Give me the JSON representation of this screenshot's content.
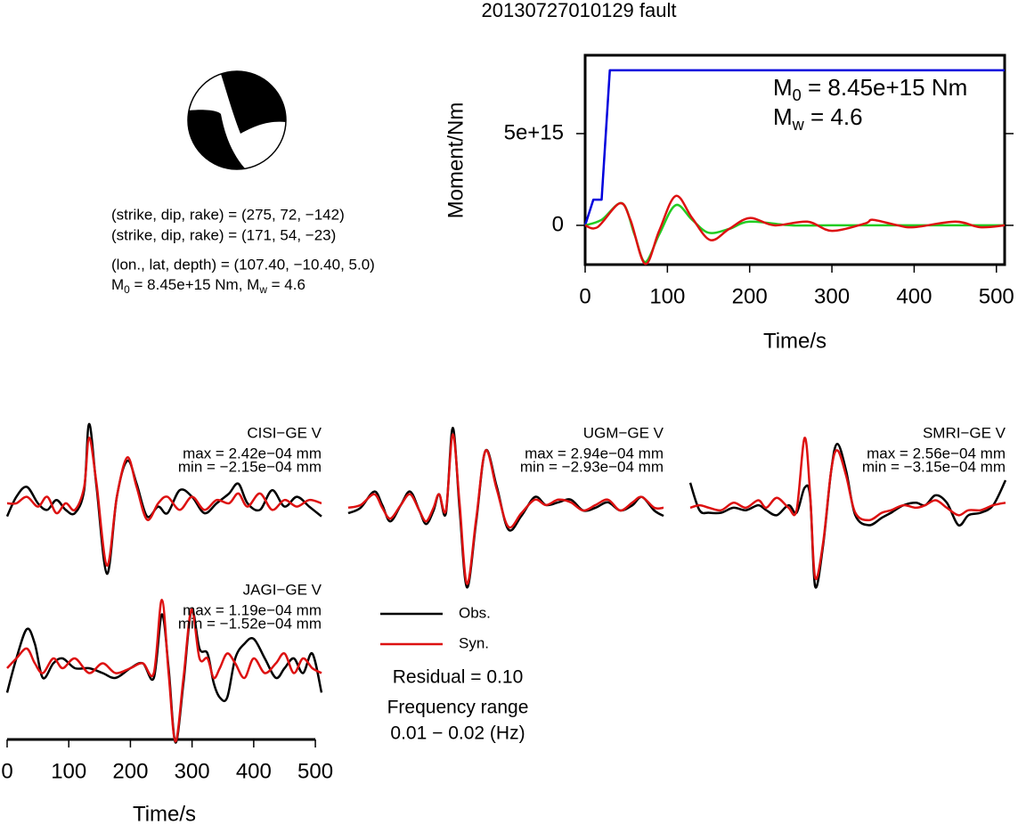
{
  "title": "20130727010129 fault",
  "mechanism": {
    "lines": [
      "(strike, dip, rake) = (275, 72, −142)",
      "(strike, dip, rake) = (171, 54, −23)",
      "(lon., lat, depth) = (107.40, −10.40, 5.0)"
    ],
    "moment": [
      "M",
      "0",
      " = 8.45e+15 Nm, M",
      "w",
      " = 4.6"
    ]
  },
  "notes": {
    "residual": "Residual = 0.10",
    "frequency": [
      "Frequency range",
      "0.01 − 0.02 (Hz)"
    ]
  },
  "chart_data": [
    {
      "type": "line",
      "x_label": "Time/s",
      "y_label": "Moment/Nm",
      "annotations": [
        [
          "M",
          "0",
          " = 8.45e+15 Nm"
        ],
        [
          "M",
          "w",
          " = 4.6"
        ]
      ],
      "xlim": [
        0,
        510
      ],
      "ylim": [
        -2140000000000000.0,
        9270000000000000.0
      ],
      "xticks": [
        0,
        100,
        200,
        300,
        400,
        500
      ],
      "yticks": [
        0,
        {
          "value": 5000000000000000.0,
          "label": "5e+15"
        }
      ],
      "series": [
        {
          "color": "#0000dd",
          "x": [
            0,
            10,
            20,
            30,
            510
          ],
          "values": [
            0,
            1400000000000000.0,
            1400000000000000.0,
            8450000000000000.0,
            8450000000000000.0
          ]
        },
        {
          "color": "#22cc22",
          "x": [
            0,
            20,
            45,
            60,
            73,
            90,
            110,
            130,
            150,
            175,
            200,
            250,
            300,
            400,
            510
          ],
          "values": [
            0,
            300000000000000.0,
            1200000000000000.0,
            -500000000000000.0,
            -2000000000000000.0,
            -500000000000000.0,
            1100000000000000.0,
            300000000000000.0,
            -400000000000000.0,
            -200000000000000.0,
            200000000000000.0,
            0,
            0,
            0,
            0
          ]
        },
        {
          "color": "#dd1111",
          "x": [
            0,
            15,
            42,
            55,
            73,
            90,
            110,
            130,
            152,
            175,
            200,
            230,
            270,
            300,
            340,
            350,
            380,
            400,
            450,
            480,
            510
          ],
          "values": [
            0,
            -100000000000000.0,
            1200000000000000.0,
            300000000000000.0,
            -2100000000000000.0,
            -300000000000000.0,
            1600000000000000.0,
            400000000000000.0,
            -800000000000000.0,
            -200000000000000.0,
            400000000000000.0,
            0,
            200000000000000.0,
            -300000000000000.0,
            100000000000000.0,
            300000000000000.0,
            0,
            -100000000000000.0,
            200000000000000.0,
            -100000000000000.0,
            0
          ]
        }
      ]
    },
    {
      "type": "line",
      "title": "CISI−GE V",
      "annotations": [
        "max = 2.42e−04 mm",
        "min = −2.15e−04 mm"
      ],
      "xlim": [
        0,
        510
      ],
      "ylim": [
        -0.000264,
        0.000269
      ],
      "x": [
        0,
        15,
        32,
        50,
        65,
        80,
        95,
        110,
        125,
        133,
        145,
        162,
        178,
        195,
        210,
        227,
        245,
        260,
        280,
        300,
        320,
        340,
        360,
        375,
        390,
        410,
        430,
        450,
        470,
        490,
        510
      ],
      "series": [
        {
          "name": "Obs.",
          "color": "#000000",
          "values": [
            -4e-05,
            2e-05,
            5e-05,
            0,
            -2e-05,
            1e-05,
            -2e-05,
            -3e-05,
            4e-05,
            0.000242,
            5e-05,
            -0.000215,
            2e-05,
            0.00013,
            6e-05,
            -4e-05,
            -1e-05,
            -3e-05,
            4e-05,
            2e-05,
            -3e-05,
            0,
            3e-05,
            6e-05,
            0,
            -2e-05,
            4e-05,
            -1e-05,
            2e-05,
            -1e-05,
            -4e-05
          ]
        },
        {
          "name": "Syn.",
          "color": "#dd1111",
          "values": [
            0,
            0,
            2e-05,
            -1e-05,
            2e-05,
            -3e-05,
            0,
            -2e-05,
            5e-05,
            0.0002,
            6e-05,
            -0.00019,
            2e-05,
            0.00014,
            5e-05,
            -5e-05,
            0,
            2e-05,
            -2e-05,
            2e-05,
            -2e-05,
            1e-05,
            0,
            3e-05,
            -1e-05,
            3e-05,
            -2e-05,
            1e-05,
            -1e-05,
            1e-05,
            0
          ]
        }
      ]
    },
    {
      "type": "line",
      "title": "UGM−GE V",
      "annotations": [
        "max = 2.94e−04 mm",
        "min = −2.93e−04 mm"
      ],
      "xlim": [
        0,
        510
      ],
      "ylim": [
        -0.000302,
        0.000341
      ],
      "x": [
        0,
        20,
        42,
        55,
        68,
        85,
        100,
        115,
        126,
        138,
        147,
        158,
        169,
        180,
        192,
        207,
        222,
        240,
        259,
        280,
        302,
        320,
        340,
        360,
        380,
        400,
        420,
        440,
        460,
        475,
        495,
        510
      ],
      "series": [
        {
          "color": "#000000",
          "values": [
            -2e-05,
            0,
            6e-05,
            1e-05,
            -5e-05,
            1e-05,
            6e-05,
            -1e-05,
            -6e-05,
            -1e-05,
            5e-05,
            -2e-05,
            0.000294,
            0,
            -0.000293,
            -5e-05,
            0.00021,
            8e-05,
            -8e-05,
            -3e-05,
            4e-05,
            1e-05,
            2e-05,
            3e-05,
            -1e-05,
            0,
            2e-05,
            -1e-05,
            1e-05,
            4e-05,
            -1e-05,
            -3e-05
          ]
        },
        {
          "color": "#dd1111",
          "values": [
            0,
            1e-05,
            5e-05,
            0,
            -4e-05,
            1e-05,
            5e-05,
            -1e-05,
            -5e-05,
            0,
            5e-05,
            -1e-05,
            0.00027,
            2e-05,
            -0.00028,
            -4e-05,
            0.00021,
            7e-05,
            -7e-05,
            -2e-05,
            3e-05,
            1e-05,
            3e-05,
            2e-05,
            -1e-05,
            1e-05,
            3e-05,
            -1e-05,
            2e-05,
            4e-05,
            0,
            0
          ]
        }
      ]
    },
    {
      "type": "line",
      "title": "SMRI−GE V",
      "annotations": [
        "max = 2.56e−04 mm",
        "min = −3.15e−04 mm"
      ],
      "xlim": [
        0,
        510
      ],
      "ylim": [
        -0.000329,
        0.000371
      ],
      "x": [
        0,
        15,
        30,
        50,
        70,
        90,
        110,
        123,
        140,
        159,
        172,
        185,
        194,
        202,
        215,
        228,
        238,
        252,
        267,
        289,
        310,
        325,
        345,
        365,
        380,
        397,
        415,
        434,
        450,
        470,
        490,
        510
      ],
      "series": [
        {
          "color": "#000000",
          "values": [
            0.0001,
            -1e-05,
            -2e-05,
            -2e-05,
            0,
            -1e-05,
            1e-05,
            -1e-05,
            -3e-05,
            1e-05,
            -2e-05,
            8e-05,
            4e-05,
            -0.000315,
            -0.00015,
            0.00015,
            0.000256,
            0.00015,
            -3e-05,
            -7e-05,
            -4e-05,
            -2e-05,
            1e-05,
            2e-05,
            1e-05,
            5e-05,
            2e-05,
            -7e-05,
            -3e-05,
            -2e-05,
            1e-05,
            0.00011
          ]
        },
        {
          "color": "#dd1111",
          "values": [
            0,
            1e-05,
            0,
            -1e-05,
            2e-05,
            0,
            3e-05,
            0,
            4e-05,
            0,
            -1e-05,
            0.00028,
            5e-05,
            -0.00028,
            -0.00014,
            0.00015,
            0.00023,
            0.00013,
            -2e-05,
            -5e-05,
            -2e-05,
            -1e-05,
            1e-05,
            0,
            1e-05,
            3e-05,
            0,
            -3e-05,
            -1e-05,
            -1e-05,
            1e-05,
            2e-05
          ]
        }
      ]
    },
    {
      "type": "line",
      "title": "JAGI−GE V",
      "annotations": [
        "max = 1.19e−04 mm",
        "min = −1.52e−04 mm"
      ],
      "x_label": "Time/s",
      "xticks": [
        0,
        100,
        200,
        300,
        400,
        500
      ],
      "xlim": [
        0,
        510
      ],
      "ylim": [
        -0.000155,
        0.000164
      ],
      "x": [
        0,
        15,
        32,
        45,
        58,
        75,
        90,
        110,
        133,
        155,
        176,
        200,
        220,
        238,
        251,
        262,
        273,
        286,
        299,
        312,
        325,
        335,
        345,
        357,
        370,
        385,
        400,
        418,
        436,
        450,
        465,
        480,
        495,
        510
      ],
      "series": [
        {
          "color": "#000000",
          "values": [
            -5e-05,
            2e-05,
            8e-05,
            5e-05,
            -2e-05,
            1e-05,
            2e-05,
            0,
            0,
            -1e-05,
            -2e-05,
            0,
            1e-05,
            -2e-05,
            0.00011,
            0,
            -0.000152,
            -3e-05,
            0.000119,
            4e-05,
            3e-05,
            -3e-05,
            -6e-05,
            -6e-05,
            2e-05,
            5e-05,
            6e-05,
            2e-05,
            -2e-05,
            0,
            2e-05,
            -1e-05,
            3e-05,
            -5e-05
          ]
        },
        {
          "color": "#dd1111",
          "values": [
            0,
            2e-05,
            4e-05,
            1e-05,
            -1e-05,
            2e-05,
            0,
            2e-05,
            -1e-05,
            1e-05,
            -1e-05,
            0,
            1e-05,
            -1e-05,
            0.00014,
            -1e-05,
            -0.00015,
            -2e-05,
            0.00012,
            2e-05,
            2e-05,
            -2e-05,
            0,
            3e-05,
            1e-05,
            -2e-05,
            2e-05,
            -1e-05,
            1e-05,
            3e-05,
            -1e-05,
            2e-05,
            0,
            -1e-05
          ]
        }
      ]
    }
  ]
}
